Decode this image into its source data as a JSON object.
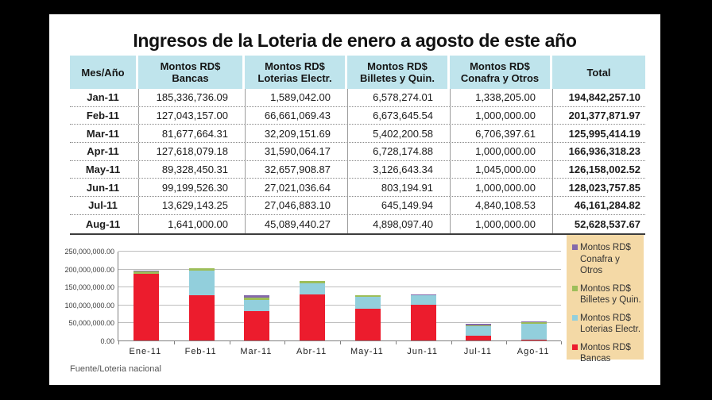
{
  "page": {
    "title": "Ingresos de la Loteria de enero a agosto de este año",
    "source_note": "Fuente/Loteria nacional"
  },
  "colors": {
    "table_header_bg": "#bfe4ec",
    "legend_bg": "#f4d9a6",
    "bancas": "#ec1c2d",
    "loterias_electr": "#92cfdc",
    "billetes": "#9dbe59",
    "conafra": "#8468aa"
  },
  "table": {
    "header": [
      {
        "line1": "Mes/Año",
        "line2": ""
      },
      {
        "line1": "Montos RD$",
        "line2": "Bancas"
      },
      {
        "line1": "Montos RD$",
        "line2": "Loterias Electr."
      },
      {
        "line1": "Montos RD$",
        "line2": "Billetes y Quin."
      },
      {
        "line1": "Montos RD$",
        "line2": "Conafra y Otros"
      },
      {
        "line1": "Total",
        "line2": ""
      }
    ],
    "rows": [
      [
        "Jan-11",
        "185,336,736.09",
        "1,589,042.00",
        "6,578,274.01",
        "1,338,205.00",
        "194,842,257.10"
      ],
      [
        "Feb-11",
        "127,043,157.00",
        "66,661,069.43",
        "6,673,645.54",
        "1,000,000.00",
        "201,377,871.97"
      ],
      [
        "Mar-11",
        "81,677,664.31",
        "32,209,151.69",
        "5,402,200.58",
        "6,706,397.61",
        "125,995,414.19"
      ],
      [
        "Apr-11",
        "127,618,079.18",
        "31,590,064.17",
        "6,728,174.88",
        "1,000,000.00",
        "166,936,318.23"
      ],
      [
        "May-11",
        "89,328,450.31",
        "32,657,908.87",
        "3,126,643.34",
        "1,045,000.00",
        "126,158,002.52"
      ],
      [
        "Jun-11",
        "99,199,526.30",
        "27,021,036.64",
        "803,194.91",
        "1,000,000.00",
        "128,023,757.85"
      ],
      [
        "Jul-11",
        "13,629,143.25",
        "27,046,883.10",
        "645,149.94",
        "4,840,108.53",
        "46,161,284.82"
      ],
      [
        "Aug-11",
        "1,641,000.00",
        "45,089,440.27",
        "4,898,097.40",
        "1,000,000.00",
        "52,628,537.67"
      ]
    ]
  },
  "chart_data": {
    "type": "bar",
    "stacked": true,
    "title": "",
    "xlabel": "",
    "ylabel": "",
    "ylim": [
      0,
      250000000
    ],
    "ytick_step": 50000000,
    "ytick_labels_bottom_to_top": [
      "0.00",
      "50,000,000.00",
      "100,000,000.00",
      "150,000,000.00",
      "200,000,000.00",
      "250,000,000.00"
    ],
    "grid": true,
    "legend_position": "right",
    "categories": [
      "Ene-11",
      "Feb-11",
      "Mar-11",
      "Abr-11",
      "May-11",
      "Jun-11",
      "Jul-11",
      "Ago-11"
    ],
    "series": [
      {
        "name": "Montos RD$ Bancas",
        "color": "#ec1c2d",
        "values": [
          185336736.09,
          127043157.0,
          81677664.31,
          127618079.18,
          89328450.31,
          99199526.3,
          13629143.25,
          1641000.0
        ]
      },
      {
        "name": "Montos RD$ Loterias Electr.",
        "color": "#92cfdc",
        "values": [
          1589042.0,
          66661069.43,
          32209151.69,
          31590064.17,
          32657908.87,
          27021036.64,
          27046883.1,
          45089440.27
        ]
      },
      {
        "name": "Montos RD$ Billetes y Quin.",
        "color": "#9dbe59",
        "values": [
          6578274.01,
          6673645.54,
          5402200.58,
          6728174.88,
          3126643.34,
          803194.91,
          645149.94,
          4898097.4
        ]
      },
      {
        "name": "Montos RD$ Conafra y Otros",
        "color": "#8468aa",
        "values": [
          1338205.0,
          1000000.0,
          6706397.61,
          1000000.0,
          1045000.0,
          1000000.0,
          4840108.53,
          1000000.0
        ]
      }
    ],
    "legend": [
      {
        "color": "#8468aa",
        "line1": "Montos RD$",
        "line2": "Conafra y Otros"
      },
      {
        "color": "#9dbe59",
        "line1": "Montos RD$",
        "line2": "Billetes y Quin."
      },
      {
        "color": "#92cfdc",
        "line1": "Montos RD$",
        "line2": "Loterias Electr."
      },
      {
        "color": "#ec1c2d",
        "line1": "Montos RD$",
        "line2": "Bancas"
      }
    ]
  }
}
